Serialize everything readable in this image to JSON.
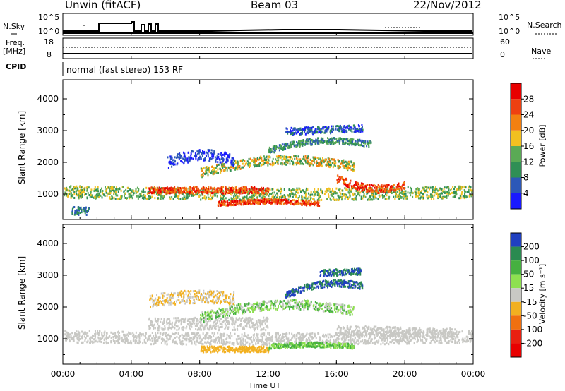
{
  "header": {
    "station": "Unwin (fitACF)",
    "beam": "Beam 03",
    "date": "22/Nov/2012"
  },
  "status_panel": {
    "nsky_label": "N.Sky",
    "nsky_ticks": [
      "10^5",
      "10^0"
    ],
    "nsearch_label": "N.Search",
    "nsearch_ticks": [
      "10^5",
      "10^0"
    ],
    "freq_label": "Freq.",
    "freq_unit": "[MHz]",
    "freq_ticks": [
      "18",
      "8"
    ],
    "nave_label": "Nave",
    "nave_ticks": [
      "60",
      "0"
    ],
    "cpid_label": "CPID",
    "cpid_text": "normal (fast stereo) 153 RF"
  },
  "chart_data": [
    {
      "type": "heatmap",
      "ylabel": "Slant Range [km]",
      "xlabel": "",
      "y_ticks": [
        1000,
        2000,
        3000,
        4000
      ],
      "ylim": [
        200,
        4600
      ],
      "xlim": [
        0,
        24
      ],
      "x_ticks_hours": [
        0,
        4,
        8,
        12,
        16,
        20,
        24
      ],
      "colorbar": {
        "label": "Power [dB]",
        "ticks": [
          "4",
          "8",
          "12",
          "16",
          "20",
          "24",
          "28"
        ],
        "colors": [
          "#1a1aff",
          "#2c58b8",
          "#2f8f55",
          "#5aaa55",
          "#f2c020",
          "#f28010",
          "#ee4010",
          "#e80000"
        ]
      }
    },
    {
      "type": "heatmap",
      "ylabel": "Slant Range [km]",
      "xlabel": "Time UT",
      "y_ticks": [
        1000,
        2000,
        3000,
        4000
      ],
      "ylim": [
        200,
        4600
      ],
      "xlim": [
        0,
        24
      ],
      "x_ticks_hours": [
        0,
        4,
        8,
        12,
        16,
        20,
        24
      ],
      "x_tick_labels": [
        "00:00",
        "04:00",
        "08:00",
        "12:00",
        "16:00",
        "20:00",
        "00:00"
      ],
      "colorbar": {
        "label": "Velocity [m s⁻¹]",
        "ticks": [
          "200",
          "100",
          "50",
          "15",
          "-15",
          "-50",
          "-100",
          "-200"
        ],
        "colors": [
          "#2040c0",
          "#2a8a50",
          "#46b040",
          "#8ee050",
          "#c8c8c4",
          "#f2b020",
          "#f07010",
          "#e82010",
          "#e80000"
        ]
      }
    }
  ]
}
